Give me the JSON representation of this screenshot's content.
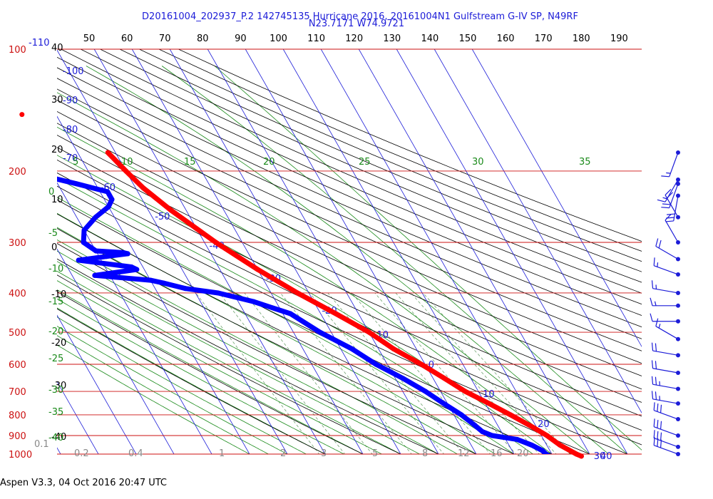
{
  "title_line1": "D20161004_202937_P.2 142745135 Hurricane 2016, 20161004N1 Gulfstream G-IV SP, N49RF",
  "title_line2": "N23.7171 W74.9721",
  "footer": "Aspen V3.3, 04 Oct 2016  20:47 UTC",
  "colors": {
    "isobar": "#cc1111",
    "isotherm": "#1c1cd8",
    "dry_adiabat": "#000000",
    "moist_adiabat": "#1a8a1a",
    "mixing_ratio": "#6ea36e",
    "temperature": "#ff0000",
    "dewpoint": "#0000ff",
    "barb": "#1c1cd8"
  },
  "chart_data": {
    "type": "skew-t",
    "pressure_levels_hPa": [
      100,
      200,
      300,
      400,
      500,
      600,
      700,
      800,
      900,
      1000
    ],
    "pressure_labels": [
      "100",
      "200",
      "300",
      "400",
      "500",
      "600",
      "700",
      "800",
      "900",
      "1000"
    ],
    "isotherm_labels_C": [
      "-110",
      "-100",
      "-90",
      "-80",
      "-70",
      "-60",
      "-50",
      "-40",
      "-30",
      "-20",
      "-10",
      "0",
      "10",
      "20",
      "30",
      "40"
    ],
    "top_axis_labels": [
      "50",
      "60",
      "70",
      "80",
      "90",
      "100",
      "110",
      "120",
      "130",
      "140",
      "150",
      "160",
      "170",
      "180",
      "190"
    ],
    "left_axis_labels": [
      "40",
      "30",
      "20",
      "10",
      "0",
      "-10",
      "-20",
      "-30",
      "-40"
    ],
    "moist_adiabat_labels_C": [
      "5",
      "10",
      "15",
      "20",
      "25",
      "30",
      "35"
    ],
    "left_moist_labels": [
      "0",
      "-5",
      "-10",
      "-15",
      "-20",
      "-25",
      "-30",
      "-35",
      "-40"
    ],
    "mixing_ratio_labels_gkg": [
      "0.1",
      "0.2",
      "0.4",
      "1",
      "2",
      "3",
      "5",
      "8",
      "12",
      "16",
      "20"
    ],
    "temperature_profile": [
      {
        "p": 180,
        "t": -52
      },
      {
        "p": 200,
        "t": -50
      },
      {
        "p": 220,
        "t": -48
      },
      {
        "p": 250,
        "t": -44
      },
      {
        "p": 300,
        "t": -37
      },
      {
        "p": 350,
        "t": -30
      },
      {
        "p": 400,
        "t": -23
      },
      {
        "p": 450,
        "t": -16
      },
      {
        "p": 500,
        "t": -10
      },
      {
        "p": 550,
        "t": -6
      },
      {
        "p": 600,
        "t": -1
      },
      {
        "p": 650,
        "t": 3
      },
      {
        "p": 700,
        "t": 6.5
      },
      {
        "p": 750,
        "t": 11
      },
      {
        "p": 800,
        "t": 15
      },
      {
        "p": 850,
        "t": 18.5
      },
      {
        "p": 900,
        "t": 21.5
      },
      {
        "p": 950,
        "t": 23.5
      },
      {
        "p": 1000,
        "t": 26.5
      },
      {
        "p": 1012,
        "t": 27.5
      }
    ],
    "temperature_isolated_point": {
      "p": 145,
      "t": -69
    },
    "dewpoint_profile": [
      {
        "p": 205,
        "t": -73
      },
      {
        "p": 215,
        "t": -65
      },
      {
        "p": 225,
        "t": -58
      },
      {
        "p": 235,
        "t": -58
      },
      {
        "p": 245,
        "t": -60
      },
      {
        "p": 260,
        "t": -65
      },
      {
        "p": 280,
        "t": -70
      },
      {
        "p": 300,
        "t": -72
      },
      {
        "p": 315,
        "t": -70
      },
      {
        "p": 318,
        "t": -63
      },
      {
        "p": 320,
        "t": -62
      },
      {
        "p": 325,
        "t": -68
      },
      {
        "p": 332,
        "t": -76
      },
      {
        "p": 345,
        "t": -63
      },
      {
        "p": 350,
        "t": -62
      },
      {
        "p": 358,
        "t": -70
      },
      {
        "p": 362,
        "t": -74
      },
      {
        "p": 372,
        "t": -60
      },
      {
        "p": 378,
        "t": -57
      },
      {
        "p": 390,
        "t": -52
      },
      {
        "p": 400,
        "t": -44
      },
      {
        "p": 420,
        "t": -36
      },
      {
        "p": 450,
        "t": -28
      },
      {
        "p": 500,
        "t": -23
      },
      {
        "p": 550,
        "t": -17
      },
      {
        "p": 600,
        "t": -13
      },
      {
        "p": 650,
        "t": -8
      },
      {
        "p": 700,
        "t": -4
      },
      {
        "p": 750,
        "t": -1
      },
      {
        "p": 800,
        "t": 2
      },
      {
        "p": 850,
        "t": 4
      },
      {
        "p": 880,
        "t": 5
      },
      {
        "p": 900,
        "t": 7
      },
      {
        "p": 920,
        "t": 13
      },
      {
        "p": 950,
        "t": 16
      },
      {
        "p": 980,
        "t": 18
      },
      {
        "p": 1000,
        "t": 18.5
      },
      {
        "p": 1012,
        "t": 19
      }
    ],
    "wind_barbs": [
      {
        "p": 180,
        "dir": 200,
        "spd": 15
      },
      {
        "p": 210,
        "dir": 210,
        "spd": 15
      },
      {
        "p": 215,
        "dir": 200,
        "spd": 20
      },
      {
        "p": 230,
        "dir": 190,
        "spd": 30
      },
      {
        "p": 260,
        "dir": 330,
        "spd": 20
      },
      {
        "p": 300,
        "dir": 330,
        "spd": 10
      },
      {
        "p": 330,
        "dir": 300,
        "spd": 20
      },
      {
        "p": 360,
        "dir": 290,
        "spd": 15
      },
      {
        "p": 400,
        "dir": 280,
        "spd": 15
      },
      {
        "p": 430,
        "dir": 270,
        "spd": 15
      },
      {
        "p": 470,
        "dir": 270,
        "spd": 10
      },
      {
        "p": 520,
        "dir": 300,
        "spd": 15
      },
      {
        "p": 570,
        "dir": 280,
        "spd": 20
      },
      {
        "p": 630,
        "dir": 280,
        "spd": 20
      },
      {
        "p": 690,
        "dir": 280,
        "spd": 25
      },
      {
        "p": 750,
        "dir": 280,
        "spd": 25
      },
      {
        "p": 820,
        "dir": 290,
        "spd": 30
      },
      {
        "p": 900,
        "dir": 290,
        "spd": 30
      },
      {
        "p": 960,
        "dir": 290,
        "spd": 30
      },
      {
        "p": 1000,
        "dir": 290,
        "spd": 30
      }
    ]
  }
}
